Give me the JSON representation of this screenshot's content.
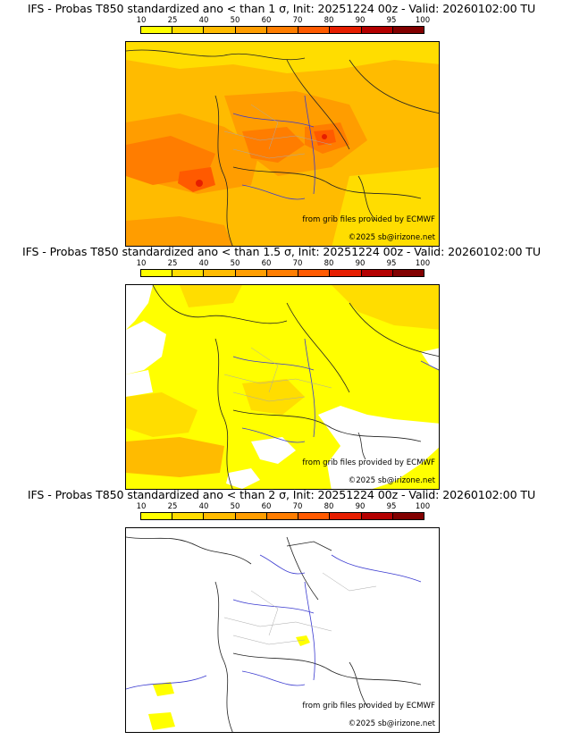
{
  "colorbar": {
    "labels": [
      "10",
      "25",
      "40",
      "50",
      "60",
      "70",
      "80",
      "90",
      "95",
      "100"
    ],
    "colors": [
      "#ffff00",
      "#ffdd00",
      "#ffbb00",
      "#ff9d00",
      "#ff7d00",
      "#ff5a00",
      "#e61e00",
      "#b40000",
      "#820000",
      "#500000"
    ]
  },
  "panels": [
    {
      "title": "IFS - Probas T850  standardized ano < than 1 σ, Init: 20251224 00z - Valid: 20260102:00 TU",
      "source": "from grib files provided by ECMWF",
      "copyright": "©2025 sb@irizone.net"
    },
    {
      "title": "IFS - Probas T850  standardized ano < than 1.5 σ, Init: 20251224 00z - Valid: 20260102:00 TU",
      "source": "from grib files provided by ECMWF",
      "copyright": "©2025 sb@irizone.net"
    },
    {
      "title": "IFS - Probas T850  standardized ano < than 2 σ, Init: 20251224 00z - Valid: 20260102:00 TU",
      "source": "from grib files provided by ECMWF",
      "copyright": "©2025 sb@irizone.net"
    }
  ]
}
